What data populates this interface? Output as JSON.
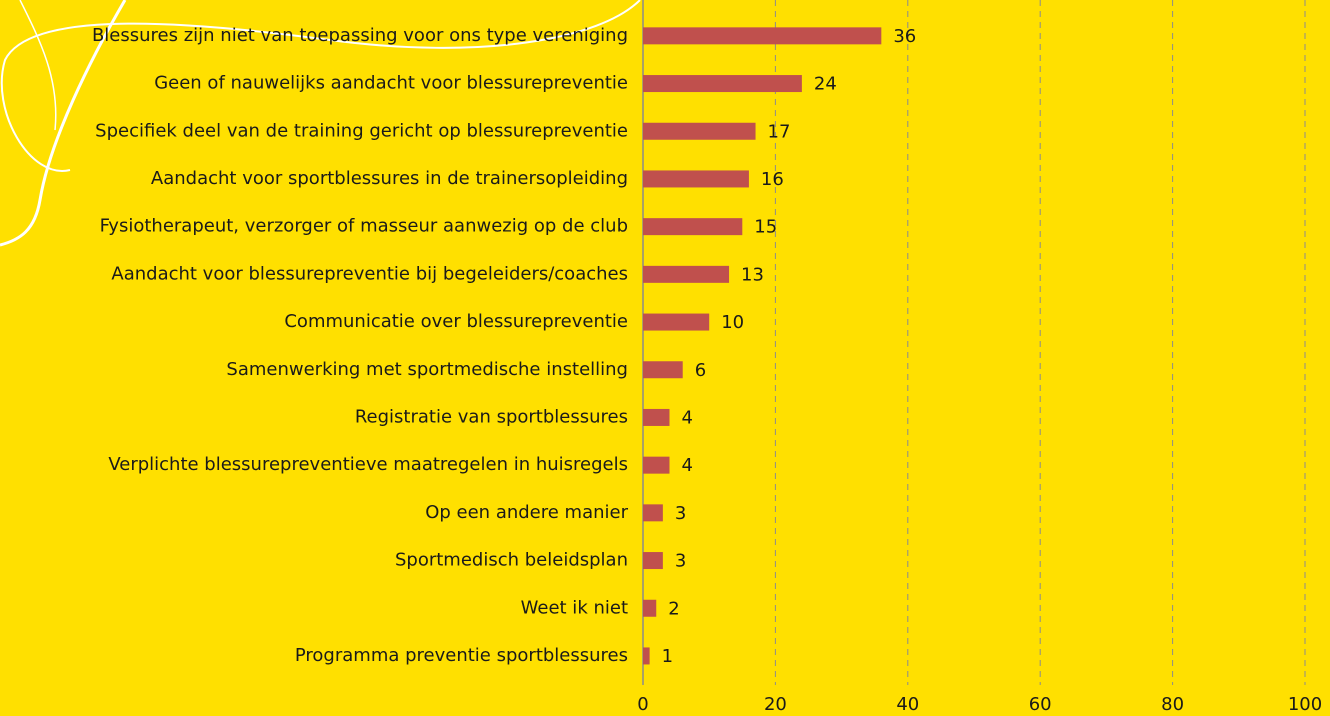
{
  "chart_data": {
    "type": "bar",
    "orientation": "horizontal",
    "categories": [
      "Blessures zijn niet van toepassing voor ons type vereniging",
      "Geen of nauwelijks aandacht voor blessurepreventie",
      "Specifiek deel van de training gericht op blessurepreventie",
      "Aandacht voor sportblessures in de trainersopleiding",
      "Fysiotherapeut, verzorger of masseur aanwezig op de club",
      "Aandacht voor blessurepreventie bij begeleiders/coaches",
      "Communicatie over blessurepreventie",
      "Samenwerking met sportmedische instelling",
      "Registratie van sportblessures",
      "Verplichte blessurepreventieve maatregelen in huisregels",
      "Op een andere manier",
      "Sportmedisch beleidsplan",
      "Weet ik niet",
      "Programma preventie sportblessures"
    ],
    "values": [
      36,
      24,
      17,
      16,
      15,
      13,
      10,
      6,
      4,
      4,
      3,
      3,
      2,
      1
    ],
    "color": "#C0504D",
    "xlim": [
      0,
      100
    ],
    "xticks": [
      0,
      20,
      40,
      60,
      80,
      100
    ],
    "grid": true
  }
}
